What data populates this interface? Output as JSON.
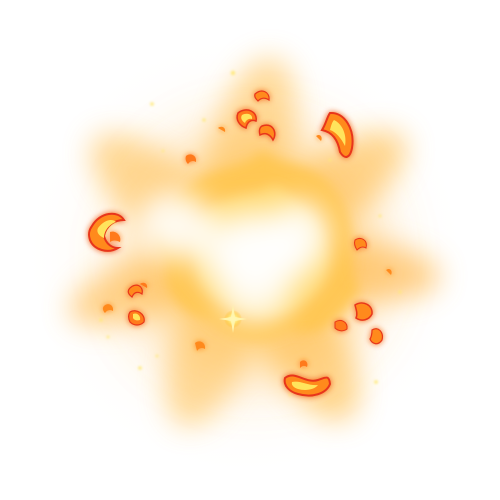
{
  "scene": {
    "subject": "fire-explosion-burst",
    "palette": {
      "core": "#ffffff",
      "glow_inner": "#fff4d6",
      "glow_mid": "#ffd47a",
      "glow_outer": "#ffb65a",
      "flame_yellow": "#ffe45c",
      "flame_orange": "#ff8a1e",
      "flame_red": "#e8361a",
      "ember_spark": "#ffe97a"
    }
  }
}
